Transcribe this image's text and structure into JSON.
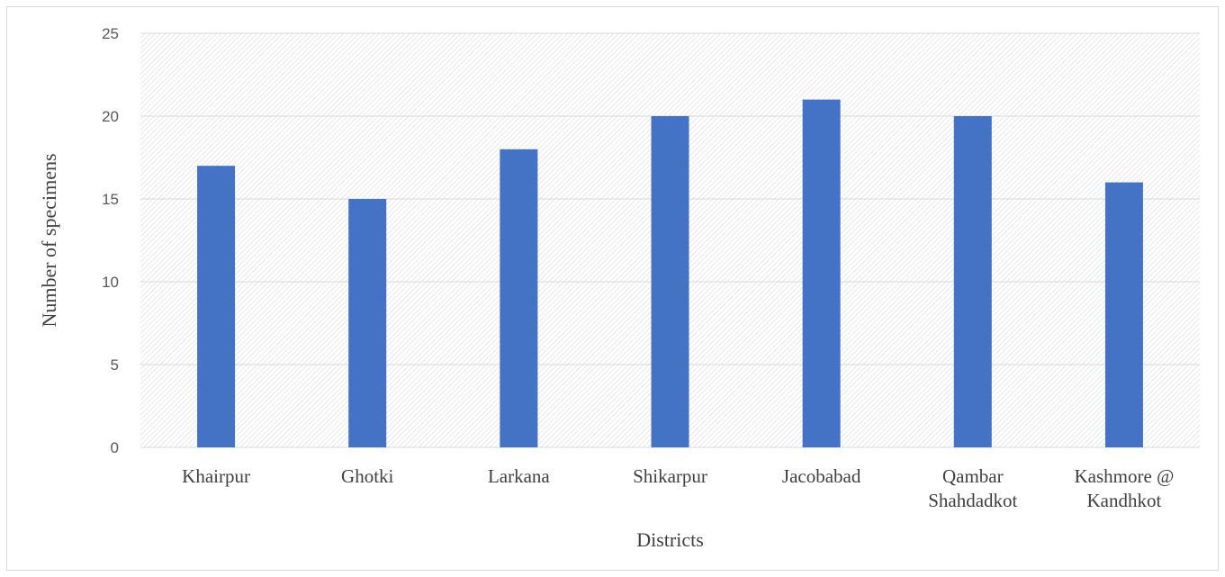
{
  "chart_data": {
    "type": "bar",
    "categories": [
      [
        "Khairpur"
      ],
      [
        "Ghotki"
      ],
      [
        "Larkana"
      ],
      [
        "Shikarpur"
      ],
      [
        "Jacobabad"
      ],
      [
        "Qambar",
        "Shahdadkot"
      ],
      [
        "Kashmore @",
        "Kandhkot"
      ]
    ],
    "values": [
      17,
      15,
      18,
      20,
      21,
      20,
      16
    ],
    "xlabel": "Districts",
    "ylabel": "Number of specimens",
    "ylim": [
      0,
      25
    ],
    "yticks": [
      0,
      5,
      10,
      15,
      20,
      25
    ],
    "grid": true,
    "legend": "none",
    "colors": {
      "bar": "#4472c4",
      "grid": "#d9d9d9",
      "hatch": "#d9d9d9",
      "frame": "#d9d9d9"
    }
  }
}
